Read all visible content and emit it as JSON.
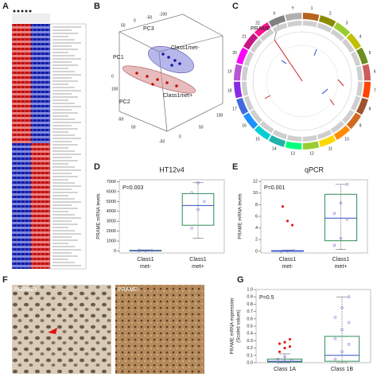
{
  "panel_labels": [
    "A",
    "B",
    "C",
    "D",
    "E",
    "F",
    "G"
  ],
  "pca": {
    "axes": [
      "PC1",
      "PC2",
      "PC3"
    ],
    "groups": [
      "Class1met-",
      "Class1met+"
    ],
    "tick_labels": [
      "50",
      "0",
      "-50",
      "-100",
      "0",
      "100",
      "-50",
      "50",
      "-50",
      "0",
      "50",
      "100"
    ]
  },
  "circos": {
    "highlight": "PRAME",
    "chromosomes": [
      "1",
      "2",
      "3",
      "4",
      "5",
      "6",
      "7",
      "8",
      "9",
      "10",
      "11",
      "12",
      "13",
      "14",
      "15",
      "16",
      "17",
      "18",
      "19",
      "20",
      "21",
      "22",
      "X",
      "Y"
    ],
    "colors": [
      "#b5651d",
      "#8b8b00",
      "#9acd32",
      "#c0c000",
      "#6b8e23",
      "#cd5c5c",
      "#ff4500",
      "#a0522d",
      "#d2691e",
      "#ff8c00",
      "#ffd700",
      "#9acd32",
      "#00ff7f",
      "#20b2aa",
      "#00ced1",
      "#1e90ff",
      "#4169e1",
      "#8a2be2",
      "#ba55d3",
      "#ff00ff",
      "#c71585",
      "#ff1493",
      "#808080",
      "#b0b0b0"
    ]
  },
  "images": {
    "left_label": "PRAME+",
    "right_label": "PRAME-"
  },
  "chart_data": [
    {
      "type": "box",
      "title": "HT12v4",
      "ylabel": [
        "PRAME mRNA levels"
      ],
      "annotation": "P=0.003",
      "categories": [
        [
          "Class1",
          "met-"
        ],
        [
          "Class1",
          "met+"
        ]
      ],
      "ylim": [
        -200,
        7200
      ],
      "yticks": [
        0,
        1000,
        2000,
        3000,
        4000,
        5000,
        6000,
        7000
      ],
      "boxes": [
        {
          "min": 0,
          "q1": 0,
          "median": 20,
          "q3": 60,
          "max": 110,
          "color": "#2e8b57",
          "points": [
            10,
            30,
            60,
            90
          ],
          "point_color": "#9370db"
        },
        {
          "min": 1300,
          "q1": 2600,
          "median": 4600,
          "q3": 5800,
          "max": 6900,
          "color": "#2e8b57",
          "points": [
            2300,
            4200,
            5000,
            5900,
            6900
          ],
          "point_color": "#9370db"
        }
      ]
    },
    {
      "type": "box",
      "title": "qPCR",
      "ylabel": [
        "PRAME mRNA levels"
      ],
      "annotation": "P=0.001",
      "categories": [
        [
          "Class1",
          "met-"
        ],
        [
          "Class1",
          "met+"
        ]
      ],
      "ylim": [
        -0.3,
        12.3
      ],
      "yticks": [
        0,
        2,
        4,
        6,
        8,
        10,
        12
      ],
      "boxes": [
        {
          "min": 0,
          "q1": 0,
          "median": 0,
          "q3": 0.1,
          "max": 0.2,
          "color": "#4169e1",
          "points": [
            0,
            0.05,
            0.1
          ],
          "point_color": "#9370db",
          "outliers": [
            7.7,
            5.2,
            4.5
          ],
          "outlier_color": "#e02020"
        },
        {
          "min": 0.3,
          "q1": 1.8,
          "median": 5.7,
          "q3": 9.8,
          "max": 11.5,
          "color": "#2e8b57",
          "points": [
            1,
            2.2,
            5.5,
            6.5,
            8.3,
            11.5
          ],
          "point_color": "#9370db"
        }
      ]
    },
    {
      "type": "box",
      "title": null,
      "ylabel": [
        "PRAME mRNA expression",
        "(Scaled values)"
      ],
      "annotation": "P=0.5",
      "categories": [
        [
          "Class 1A"
        ],
        [
          "Class 1B"
        ]
      ],
      "ylim": [
        0,
        1.0
      ],
      "yticks": [
        {
          "value": 0,
          "label": "0.0"
        },
        {
          "value": 0.1,
          "label": "0.1"
        },
        {
          "value": 0.2,
          "label": "0.2"
        },
        {
          "value": 0.3,
          "label": "0.3"
        },
        {
          "value": 0.4,
          "label": "0.4"
        },
        {
          "value": 0.5,
          "label": "0.5"
        },
        {
          "value": 0.6,
          "label": "0.6"
        },
        {
          "value": 0.7,
          "label": "0.7"
        },
        {
          "value": 0.8,
          "label": "0.8"
        },
        {
          "value": 0.9,
          "label": "0.9"
        },
        {
          "value": 1.0,
          "label": "1.0"
        }
      ],
      "boxes": [
        {
          "min": 0,
          "q1": 0.01,
          "median": 0.02,
          "q3": 0.05,
          "max": 0.12,
          "color": "#2e8b57",
          "points": [
            0.01,
            0.02,
            0.03,
            0.05,
            0.08
          ],
          "point_color": "#9370db",
          "outliers": [
            0.15,
            0.2,
            0.22,
            0.26,
            0.28,
            0.32
          ],
          "outlier_color": "#e02020"
        },
        {
          "min": 0,
          "q1": 0.02,
          "median": 0.1,
          "q3": 0.36,
          "max": 0.9,
          "color": "#2e8b57",
          "points": [
            0.05,
            0.15,
            0.25,
            0.33,
            0.45,
            0.55,
            0.62,
            0.75,
            0.9
          ],
          "point_color": "#9370db"
        }
      ]
    }
  ]
}
